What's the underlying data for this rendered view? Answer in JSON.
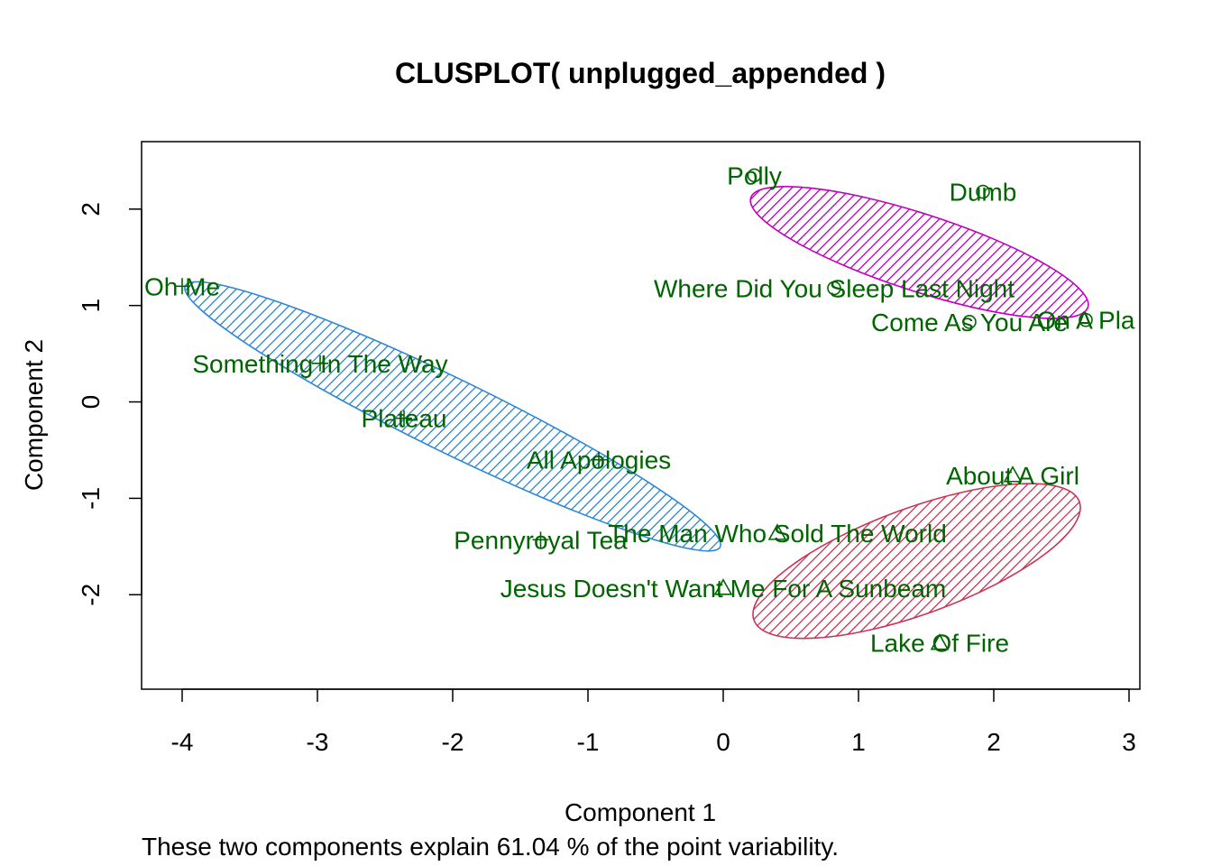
{
  "chart_data": {
    "type": "scatter",
    "title": "CLUSPLOT( unplugged_appended )",
    "xlabel": "Component 1",
    "ylabel": "Component 2",
    "subtitle": "These two components explain 61.04 % of the point variability.",
    "xlim": [
      -4.3,
      3.08
    ],
    "ylim": [
      -2.98,
      2.7
    ],
    "x_ticks": [
      -4,
      -3,
      -2,
      -1,
      0,
      1,
      2,
      3
    ],
    "y_ticks": [
      -2,
      -1,
      0,
      1,
      2
    ],
    "grid": false,
    "legend": "none",
    "colors": {
      "label": "#006400",
      "point": "#006400",
      "cluster_plus": "#2f86d7",
      "cluster_circle": "#c000c0",
      "cluster_triangle": "#cc3355",
      "axis": "#000000"
    },
    "clusters": [
      {
        "symbol": "plus",
        "color": "#2f86d7",
        "ellipse": {
          "cx": -2.0,
          "cy": -0.15,
          "rx": 2.2,
          "ry": 0.38,
          "angle_deg": -26
        }
      },
      {
        "symbol": "circle",
        "color": "#c000c0",
        "ellipse": {
          "cx": 1.45,
          "cy": 1.55,
          "rx": 1.31,
          "ry": 0.4,
          "angle_deg": -18
        }
      },
      {
        "symbol": "triangle",
        "color": "#cc3355",
        "ellipse": {
          "cx": 1.43,
          "cy": -1.65,
          "rx": 1.28,
          "ry": 0.55,
          "angle_deg": 20
        }
      }
    ],
    "points": [
      {
        "label": "Oh Me",
        "x": -4.0,
        "y": 1.2,
        "symbol": "plus"
      },
      {
        "label": "Something In The Way",
        "x": -2.98,
        "y": 0.4,
        "symbol": "plus"
      },
      {
        "label": "Plateau",
        "x": -2.36,
        "y": -0.17,
        "symbol": "plus"
      },
      {
        "label": "All Apologies",
        "x": -0.92,
        "y": -0.6,
        "symbol": "plus"
      },
      {
        "label": "Pennyroyal Tea",
        "x": -1.35,
        "y": -1.43,
        "symbol": "plus"
      },
      {
        "label": "Polly",
        "x": 0.23,
        "y": 2.35,
        "symbol": "circle"
      },
      {
        "label": "Dumb",
        "x": 1.92,
        "y": 2.18,
        "symbol": "circle"
      },
      {
        "label": "Where Did You Sleep Last Night",
        "x": 0.82,
        "y": 1.18,
        "symbol": "circle"
      },
      {
        "label": "Come As You Are",
        "x": 1.82,
        "y": 0.83,
        "symbol": "circle"
      },
      {
        "label": "On A Pla",
        "x": 2.68,
        "y": 0.85,
        "symbol": "circle"
      },
      {
        "label": "About A Girl",
        "x": 2.14,
        "y": -0.76,
        "symbol": "triangle"
      },
      {
        "label": "The Man Who Sold The World",
        "x": 0.4,
        "y": -1.36,
        "symbol": "triangle"
      },
      {
        "label": "Jesus Doesn't Want Me For A Sunbeam",
        "x": 0.0,
        "y": -1.93,
        "symbol": "triangle"
      },
      {
        "label": "Lake Of Fire",
        "x": 1.6,
        "y": -2.5,
        "symbol": "triangle"
      }
    ]
  }
}
